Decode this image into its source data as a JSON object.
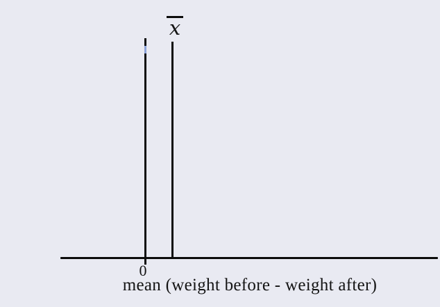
{
  "figure": {
    "colors": {
      "background": "#e9eaf2",
      "ink": "#0c0c0c",
      "text": "#141414",
      "highlight": "#8ca3d8"
    },
    "sample_mean_symbol": "x",
    "zero_tick_label": "0",
    "axis_caption": "mean (weight before - weight after)"
  },
  "chart_data": {
    "type": "line",
    "title": "",
    "xlabel": "mean (weight before - weight after)",
    "ylabel": "",
    "grid": false,
    "legend": "none",
    "x_ticks": [
      {
        "value": 0,
        "label": "0"
      }
    ],
    "elements": [
      {
        "name": "x-axis",
        "kind": "horizontal-axis-line"
      },
      {
        "name": "zero-reference-line",
        "kind": "vertical-line",
        "x_value": 0,
        "note": "tall vertical line at 0 crossing slightly below the axis; short light-blue highlight segment near its top"
      },
      {
        "name": "sample-mean-line",
        "kind": "vertical-line",
        "x_value": 0.07,
        "x_value_note": "slightly greater than 0 (about 7% of the axis length to the right of the zero line)",
        "label_above": "x̄ (x with overline, the sample mean)"
      }
    ]
  }
}
